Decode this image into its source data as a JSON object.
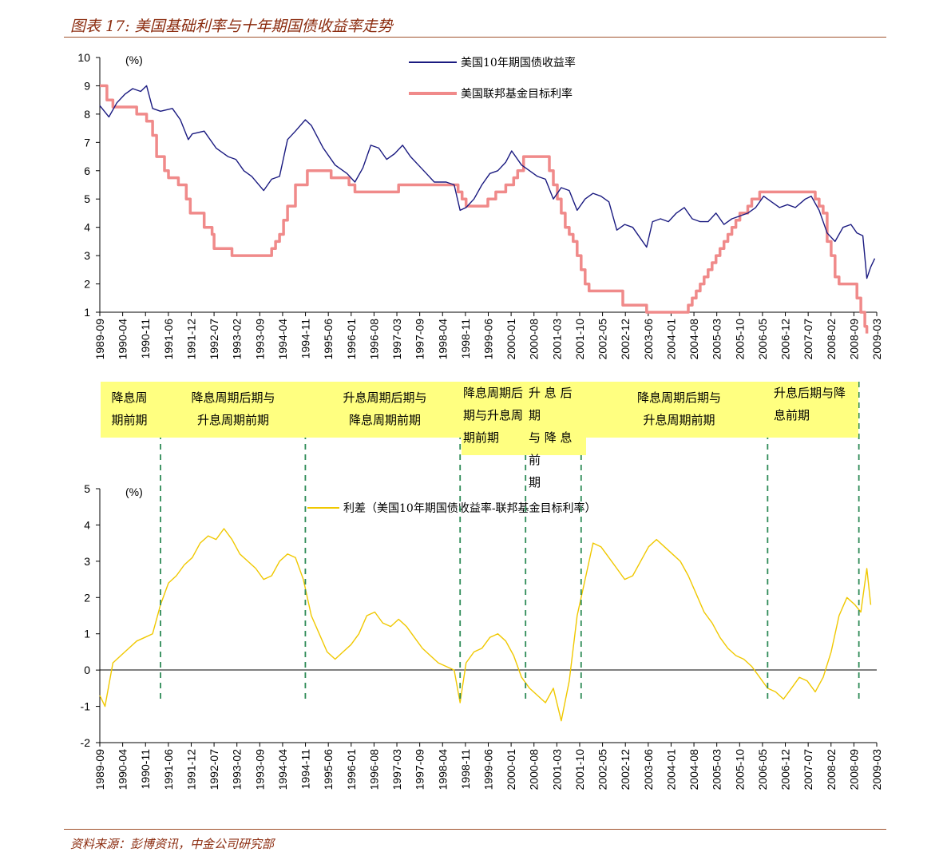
{
  "figure": {
    "title": "图表 17:  美国基础利率与十年期国债收益率走势",
    "source": "资料来源：彭博资讯，中金公司研究部"
  },
  "colors": {
    "treasury": "#1A1A80",
    "fed": "#F08A8A",
    "spread": "#F0C800",
    "divider": "#2E8B57",
    "accent": "#8B2B0E",
    "phase_fill": "#FFFF80"
  },
  "phases": [
    {
      "lines": [
        "降息周",
        "期前期"
      ]
    },
    {
      "lines": [
        "降息周期后期与",
        "升息周期前期"
      ]
    },
    {
      "lines": [
        "升息周期后期与",
        "降息周期前期"
      ]
    },
    {
      "lines": [
        "降息周期后",
        "期与升息周",
        "期前期"
      ]
    },
    {
      "lines": [
        "升 息 后 期",
        "与 降 息 前",
        "期"
      ]
    },
    {
      "lines": [
        "降息周期后期与",
        "升息周期前期"
      ]
    },
    {
      "lines": [
        "升息后期与降",
        "息前期"
      ]
    }
  ],
  "chart_data": [
    {
      "type": "line",
      "unit_label": "(%)",
      "ylim": [
        1,
        10
      ],
      "yticks": [
        1,
        2,
        3,
        4,
        5,
        6,
        7,
        8,
        9,
        10
      ],
      "x_ticks": [
        "1989-09",
        "1990-04",
        "1990-11",
        "1991-06",
        "1991-12",
        "1992-07",
        "1993-02",
        "1993-09",
        "1994-04",
        "1994-11",
        "1995-06",
        "1996-01",
        "1996-08",
        "1997-03",
        "1997-09",
        "1998-04",
        "1998-11",
        "1999-06",
        "2000-01",
        "2000-08",
        "2001-03",
        "2001-10",
        "2002-05",
        "2002-12",
        "2003-06",
        "2004-01",
        "2004-08",
        "2005-03",
        "2005-10",
        "2006-05",
        "2006-12",
        "2007-07",
        "2008-02",
        "2008-09",
        "2009-03"
      ],
      "xlim": [
        1989.67,
        2009.25
      ],
      "series": [
        {
          "name": "美国10年期国债收益率",
          "x": [
            1989.67,
            1989.9,
            1990.1,
            1990.3,
            1990.5,
            1990.7,
            1990.85,
            1991.0,
            1991.2,
            1991.5,
            1991.7,
            1991.9,
            1992.0,
            1992.3,
            1992.6,
            1992.9,
            1993.1,
            1993.3,
            1993.5,
            1993.8,
            1994.0,
            1994.2,
            1994.4,
            1994.6,
            1994.85,
            1995.0,
            1995.3,
            1995.6,
            1995.9,
            1996.1,
            1996.3,
            1996.5,
            1996.7,
            1996.9,
            1997.1,
            1997.3,
            1997.5,
            1997.7,
            1997.9,
            1998.1,
            1998.4,
            1998.6,
            1998.75,
            1998.9,
            1999.1,
            1999.3,
            1999.5,
            1999.7,
            1999.9,
            2000.05,
            2000.3,
            2000.5,
            2000.7,
            2000.9,
            2001.1,
            2001.3,
            2001.5,
            2001.7,
            2001.9,
            2002.1,
            2002.3,
            2002.5,
            2002.7,
            2002.9,
            2003.1,
            2003.3,
            2003.45,
            2003.6,
            2003.8,
            2004.0,
            2004.2,
            2004.4,
            2004.6,
            2004.8,
            2005.0,
            2005.2,
            2005.4,
            2005.6,
            2005.8,
            2006.0,
            2006.2,
            2006.4,
            2006.6,
            2006.8,
            2007.0,
            2007.2,
            2007.45,
            2007.6,
            2007.8,
            2008.0,
            2008.2,
            2008.4,
            2008.6,
            2008.75,
            2008.9,
            2009.0,
            2009.1,
            2009.2
          ],
          "values": [
            8.3,
            7.9,
            8.4,
            8.7,
            8.9,
            8.8,
            9.0,
            8.2,
            8.1,
            8.2,
            7.8,
            7.1,
            7.3,
            7.4,
            6.8,
            6.5,
            6.4,
            6.0,
            5.8,
            5.3,
            5.7,
            5.8,
            7.1,
            7.4,
            7.8,
            7.6,
            6.8,
            6.2,
            5.9,
            5.6,
            6.1,
            6.9,
            6.8,
            6.4,
            6.6,
            6.9,
            6.5,
            6.2,
            5.9,
            5.6,
            5.6,
            5.5,
            4.6,
            4.7,
            5.0,
            5.5,
            5.9,
            6.0,
            6.3,
            6.7,
            6.2,
            6.0,
            5.8,
            5.7,
            5.0,
            5.4,
            5.3,
            4.6,
            5.0,
            5.2,
            5.1,
            4.9,
            3.9,
            4.1,
            4.0,
            3.6,
            3.3,
            4.2,
            4.3,
            4.2,
            4.5,
            4.7,
            4.3,
            4.2,
            4.2,
            4.5,
            4.1,
            4.3,
            4.4,
            4.5,
            4.7,
            5.1,
            4.9,
            4.7,
            4.8,
            4.7,
            5.0,
            5.1,
            4.6,
            3.8,
            3.5,
            4.0,
            4.1,
            3.8,
            3.7,
            2.2,
            2.6,
            2.9
          ]
        },
        {
          "name": "美国联邦基金目标利率",
          "step": true,
          "x": [
            1989.67,
            1989.85,
            1990.0,
            1990.6,
            1990.85,
            1991.0,
            1991.1,
            1991.3,
            1991.4,
            1991.65,
            1991.85,
            1991.95,
            1992.3,
            1992.5,
            1992.55,
            1993.0,
            1993.5,
            1994.0,
            1994.1,
            1994.2,
            1994.3,
            1994.4,
            1994.6,
            1994.9,
            1995.1,
            1995.5,
            1995.95,
            1996.1,
            1997.2,
            1998.2,
            1998.7,
            1998.8,
            1998.9,
            1999.45,
            1999.65,
            1999.9,
            2000.1,
            2000.2,
            2000.35,
            2000.85,
            2001.0,
            2001.1,
            2001.2,
            2001.3,
            2001.4,
            2001.5,
            2001.6,
            2001.7,
            2001.8,
            2001.9,
            2002.0,
            2002.85,
            2003.45,
            2004.5,
            2004.6,
            2004.7,
            2004.8,
            2004.9,
            2005.0,
            2005.1,
            2005.2,
            2005.3,
            2005.4,
            2005.5,
            2005.6,
            2005.7,
            2005.8,
            2005.9,
            2006.0,
            2006.1,
            2006.2,
            2006.3,
            2006.4,
            2006.5,
            2007.7,
            2007.8,
            2007.9,
            2008.0,
            2008.1,
            2008.2,
            2008.3,
            2008.75,
            2008.85,
            2008.95,
            2009.0
          ],
          "values": [
            9.0,
            8.5,
            8.25,
            8.0,
            7.75,
            7.25,
            6.5,
            6.0,
            5.75,
            5.5,
            5.0,
            4.5,
            4.0,
            3.75,
            3.25,
            3.0,
            3.0,
            3.25,
            3.5,
            3.75,
            4.25,
            4.75,
            5.5,
            6.0,
            6.0,
            5.75,
            5.5,
            5.25,
            5.5,
            5.5,
            5.25,
            5.0,
            4.75,
            5.0,
            5.25,
            5.5,
            5.75,
            6.0,
            6.5,
            6.5,
            6.0,
            5.5,
            5.0,
            4.5,
            4.0,
            3.75,
            3.5,
            3.0,
            2.5,
            2.0,
            1.75,
            1.25,
            1.0,
            1.25,
            1.5,
            1.75,
            2.0,
            2.25,
            2.5,
            2.75,
            3.0,
            3.25,
            3.5,
            3.75,
            4.0,
            4.25,
            4.5,
            4.5,
            4.75,
            5.0,
            5.0,
            5.25,
            5.25,
            5.25,
            5.0,
            4.75,
            4.5,
            3.5,
            3.0,
            2.25,
            2.0,
            1.5,
            1.0,
            0.5,
            0.25
          ]
        }
      ]
    },
    {
      "type": "line",
      "unit_label": "(%)",
      "ylim": [
        -2,
        5
      ],
      "yticks": [
        -2,
        -1,
        0,
        1,
        2,
        3,
        4,
        5
      ],
      "x_ticks": [
        "1989-09",
        "1990-04",
        "1990-11",
        "1991-06",
        "1991-12",
        "1992-07",
        "1993-02",
        "1993-09",
        "1994-04",
        "1994-11",
        "1995-06",
        "1996-01",
        "1996-08",
        "1997-03",
        "1997-09",
        "1998-04",
        "1998-11",
        "1999-06",
        "2000-01",
        "2000-08",
        "2001-03",
        "2001-10",
        "2002-05",
        "2002-12",
        "2003-06",
        "2004-01",
        "2004-08",
        "2005-03",
        "2005-10",
        "2006-05",
        "2006-12",
        "2007-07",
        "2008-02",
        "2008-09",
        "2009-03"
      ],
      "xlim": [
        1989.67,
        2009.25
      ],
      "dividers": [
        1991.2,
        1994.85,
        1998.75,
        2000.4,
        2001.8,
        2006.5,
        2008.8
      ],
      "series": [
        {
          "name": "利差（美国10年期国债收益率-联邦基金目标利率）",
          "x": [
            1989.67,
            1989.8,
            1990.0,
            1990.2,
            1990.4,
            1990.6,
            1990.8,
            1991.0,
            1991.2,
            1991.4,
            1991.6,
            1991.8,
            1992.0,
            1992.2,
            1992.4,
            1992.6,
            1992.8,
            1993.0,
            1993.2,
            1993.4,
            1993.6,
            1993.8,
            1994.0,
            1994.2,
            1994.4,
            1994.6,
            1994.8,
            1995.0,
            1995.2,
            1995.4,
            1995.6,
            1995.8,
            1996.0,
            1996.2,
            1996.4,
            1996.6,
            1996.8,
            1997.0,
            1997.2,
            1997.4,
            1997.6,
            1997.8,
            1998.0,
            1998.2,
            1998.4,
            1998.6,
            1998.75,
            1998.9,
            1999.1,
            1999.3,
            1999.5,
            1999.7,
            1999.9,
            2000.1,
            2000.3,
            2000.5,
            2000.7,
            2000.9,
            2001.1,
            2001.3,
            2001.5,
            2001.7,
            2001.9,
            2002.1,
            2002.3,
            2002.5,
            2002.7,
            2002.9,
            2003.1,
            2003.3,
            2003.5,
            2003.7,
            2003.9,
            2004.1,
            2004.3,
            2004.5,
            2004.7,
            2004.9,
            2005.1,
            2005.3,
            2005.5,
            2005.7,
            2005.9,
            2006.1,
            2006.3,
            2006.5,
            2006.7,
            2006.9,
            2007.1,
            2007.3,
            2007.5,
            2007.7,
            2007.9,
            2008.1,
            2008.3,
            2008.5,
            2008.7,
            2008.85,
            2009.0,
            2009.1
          ],
          "values": [
            -0.7,
            -1.0,
            0.2,
            0.4,
            0.6,
            0.8,
            0.9,
            1.0,
            1.8,
            2.4,
            2.6,
            2.9,
            3.1,
            3.5,
            3.7,
            3.6,
            3.9,
            3.6,
            3.2,
            3.0,
            2.8,
            2.5,
            2.6,
            3.0,
            3.2,
            3.1,
            2.5,
            1.5,
            1.0,
            0.5,
            0.3,
            0.5,
            0.7,
            1.0,
            1.5,
            1.6,
            1.3,
            1.2,
            1.4,
            1.2,
            0.9,
            0.6,
            0.4,
            0.2,
            0.1,
            0.0,
            -0.9,
            0.2,
            0.5,
            0.6,
            0.9,
            1.0,
            0.8,
            0.4,
            -0.2,
            -0.5,
            -0.7,
            -0.9,
            -0.5,
            -1.4,
            -0.3,
            1.5,
            2.5,
            3.5,
            3.4,
            3.1,
            2.8,
            2.5,
            2.6,
            3.0,
            3.4,
            3.6,
            3.4,
            3.2,
            3.0,
            2.6,
            2.1,
            1.6,
            1.3,
            0.9,
            0.6,
            0.4,
            0.3,
            0.1,
            -0.2,
            -0.5,
            -0.6,
            -0.8,
            -0.5,
            -0.2,
            -0.3,
            -0.6,
            -0.2,
            0.5,
            1.5,
            2.0,
            1.8,
            1.6,
            2.8,
            1.8
          ]
        }
      ]
    }
  ]
}
